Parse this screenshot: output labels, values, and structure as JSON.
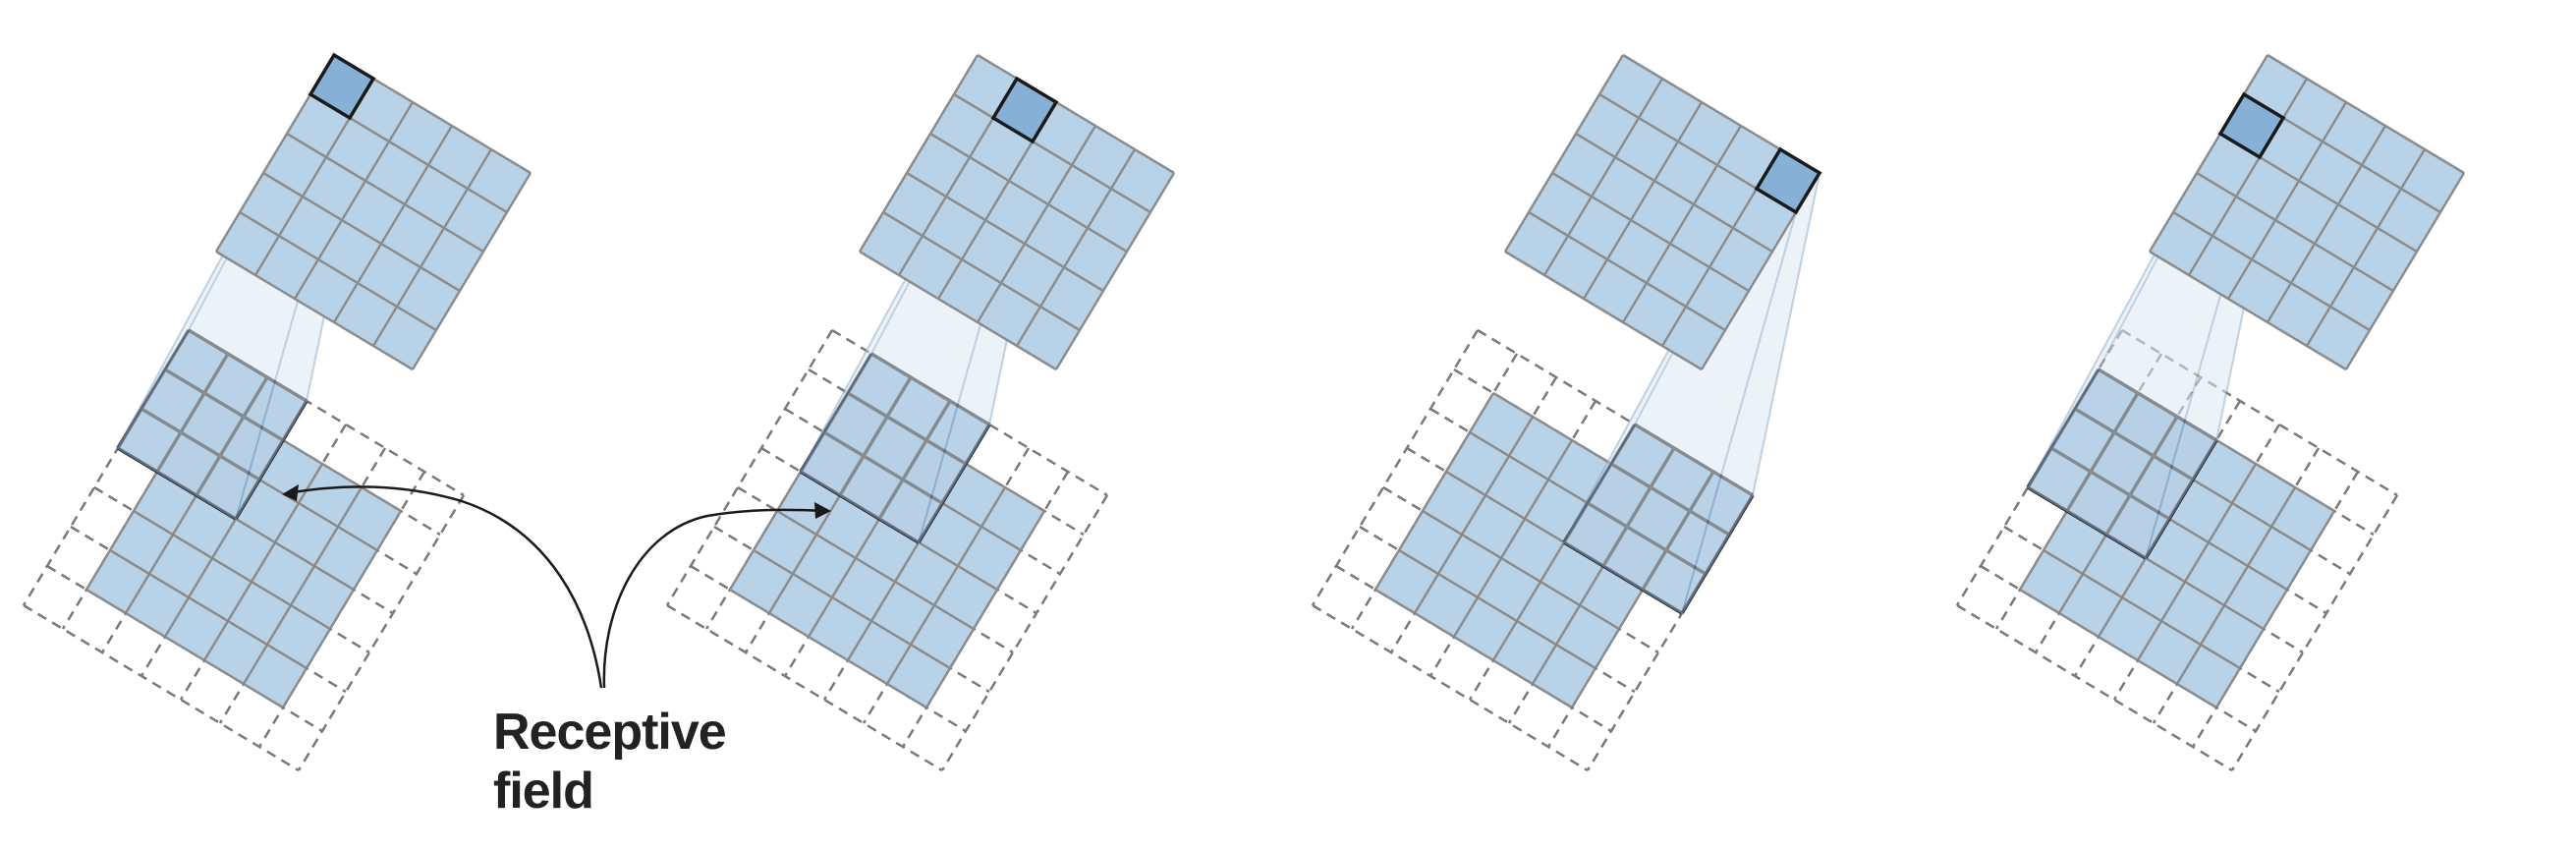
{
  "annotation": {
    "line1": "Receptive",
    "line2": "field"
  },
  "colors": {
    "cell": "#b8d2e8",
    "cell_highlight": "#86b0d6",
    "grid_line": "#8c8c8c",
    "padding_line": "#7a7a7a",
    "kernel_outline": "#1a1a1a",
    "projection": "#dce8f3",
    "projection_edge": "#8eaccb",
    "text": "#222222"
  },
  "diagram": {
    "panels": 4,
    "input_grid": 5,
    "padded_grid": 7,
    "output_grid": 5,
    "kernel": 3,
    "panel_positions": [
      {
        "name": "top-left",
        "kernel_at": [
          0,
          0
        ],
        "output_at": [
          0,
          0
        ]
      },
      {
        "name": "top-middle",
        "kernel_at": [
          0,
          1
        ],
        "output_at": [
          0,
          1
        ]
      },
      {
        "name": "top-right",
        "kernel_at": [
          0,
          4
        ],
        "output_at": [
          0,
          4
        ]
      },
      {
        "name": "second-row-left",
        "kernel_at": [
          1,
          0
        ],
        "output_at": [
          1,
          0
        ]
      }
    ]
  }
}
